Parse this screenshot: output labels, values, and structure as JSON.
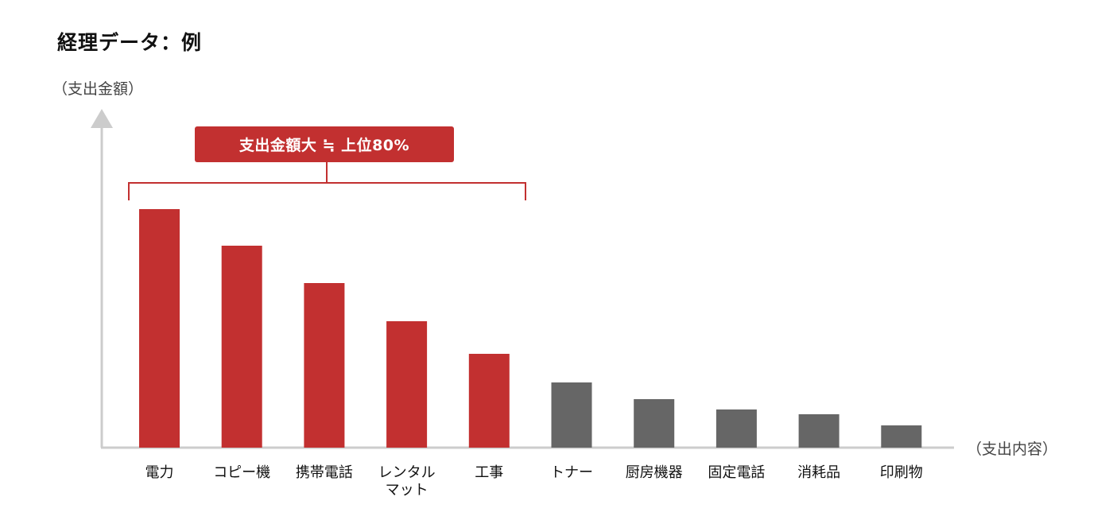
{
  "title": "経理データ：例",
  "chart_data": {
    "type": "bar",
    "ylabel": "（支出金額）",
    "xlabel": "（支出内容）",
    "categories": [
      "電力",
      "コピー機",
      "携帯電話",
      "レンタル\nマット",
      "工事",
      "トナー",
      "厨房機器",
      "固定電話",
      "消耗品",
      "印刷物"
    ],
    "values": [
      300,
      254,
      207,
      159,
      118,
      82,
      61,
      48,
      42,
      28
    ],
    "ylim": [
      0,
      400
    ],
    "highlight_count": 5,
    "annotation": "支出金額大 ≒ 上位80%",
    "colors": {
      "highlight": "#c23030",
      "other": "#666666",
      "axis": "#cccccc",
      "bracket": "#c23030"
    },
    "grid": false
  }
}
